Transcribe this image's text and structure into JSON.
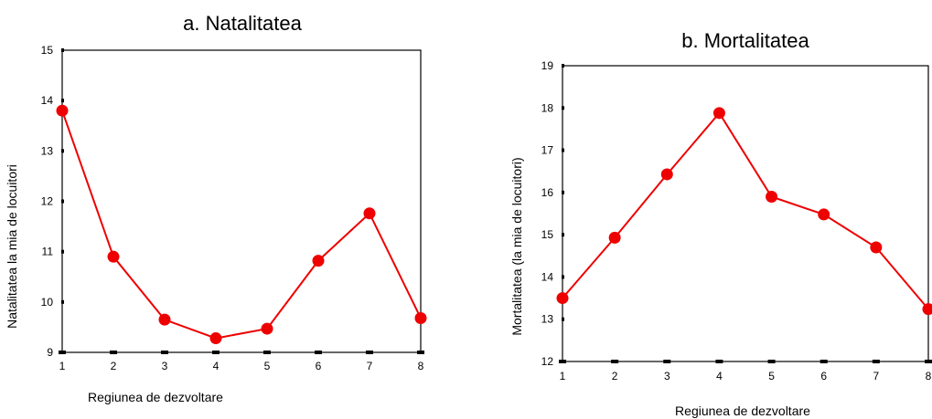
{
  "chart_data": [
    {
      "type": "line",
      "title": "a. Natalitatea",
      "xlabel": "Regiunea de dezvoltare",
      "ylabel": "Natalitatea la mia de locuitori",
      "x": [
        1,
        2,
        3,
        4,
        5,
        6,
        7,
        8
      ],
      "y": [
        13.8,
        10.9,
        9.65,
        9.28,
        9.47,
        10.82,
        11.76,
        9.68
      ],
      "xlim": [
        1,
        8
      ],
      "ylim": [
        9,
        15
      ],
      "yticks": [
        9,
        10,
        11,
        12,
        13,
        14,
        15
      ],
      "color": "#ee0000"
    },
    {
      "type": "line",
      "title": "b. Mortalitatea",
      "xlabel": "Regiunea de dezvoltare",
      "ylabel": "Mortalitatea (la mia de locuitori)",
      "x": [
        1,
        2,
        3,
        4,
        5,
        6,
        7,
        8
      ],
      "y": [
        13.5,
        14.93,
        16.43,
        17.88,
        15.9,
        15.48,
        14.7,
        13.24
      ],
      "xlim": [
        1,
        8
      ],
      "ylim": [
        12,
        19
      ],
      "yticks": [
        12,
        13,
        14,
        15,
        16,
        17,
        18,
        19
      ],
      "color": "#ee0000"
    }
  ]
}
